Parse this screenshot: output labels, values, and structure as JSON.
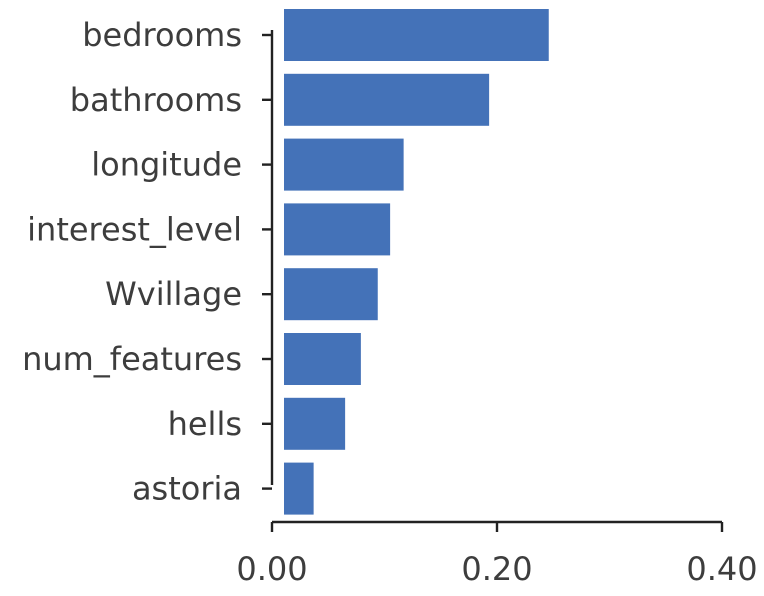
{
  "chart_data": {
    "type": "bar",
    "orientation": "horizontal",
    "categories": [
      "bedrooms",
      "bathrooms",
      "longitude",
      "interest_level",
      "Wvillage",
      "num_features",
      "hells",
      "astoria"
    ],
    "values": [
      0.246,
      0.193,
      0.117,
      0.105,
      0.094,
      0.079,
      0.065,
      0.037
    ],
    "title": "",
    "xlabel": "",
    "ylabel": "",
    "xlim": [
      0,
      0.4
    ],
    "xticks": [
      0.0,
      0.2,
      0.4
    ],
    "xtick_labels": [
      "0.00",
      "0.20",
      "0.40"
    ],
    "grid": false,
    "bar_color": "#4472b8"
  }
}
